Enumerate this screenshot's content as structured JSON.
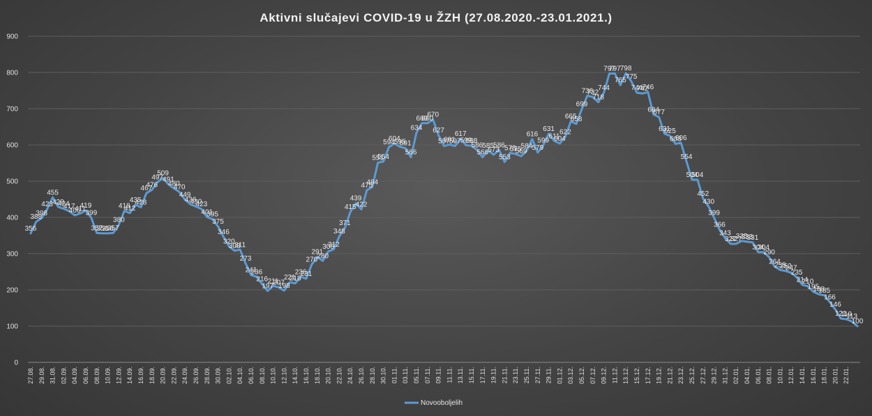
{
  "chart_data": {
    "type": "line",
    "title": "Aktivni  slučajevi  COVID-19  u  ŽZH  (27.08.2020.-23.01.2021.)",
    "xlabel": "",
    "ylabel": "",
    "ylim": [
      0,
      900
    ],
    "yticks": [
      0,
      100,
      200,
      300,
      400,
      500,
      600,
      700,
      800,
      900
    ],
    "grid": true,
    "legend_position": "bottom",
    "series_color": "#5b9bd5",
    "x_tick_labels": [
      "27.08.",
      "29.08.",
      "31.08.",
      "02.09.",
      "04.09.",
      "06.09.",
      "08.09.",
      "10.09.",
      "12.09.",
      "14.09.",
      "16.09.",
      "18.09.",
      "20.09.",
      "22.09.",
      "24.09.",
      "26.09.",
      "28.09.",
      "30.09.",
      "02.10.",
      "04.10.",
      "06.10.",
      "08.10.",
      "10.10.",
      "12.10.",
      "14.10.",
      "16.10.",
      "18.10.",
      "20.10.",
      "22.10.",
      "24.10.",
      "26.10.",
      "28.10.",
      "30.10.",
      "01.11.",
      "03.11.",
      "05.11.",
      "07.11.",
      "09.11.",
      "11.11.",
      "13.11.",
      "15.11.",
      "17.11.",
      "19.11.",
      "21.11.",
      "23.11.",
      "25.11.",
      "27.11.",
      "29.11.",
      "01.12.",
      "03.12.",
      "05.12.",
      "07.12.",
      "09.12.",
      "11.12.",
      "13.12.",
      "15.12.",
      "17.12.",
      "19.12.",
      "21.12.",
      "23.12.",
      "25.12.",
      "27.12.",
      "29.12.",
      "31.12.",
      "02.01.",
      "04.01.",
      "06.01.",
      "08.01.",
      "10.01.",
      "12.01.",
      "14.01.",
      "16.01.",
      "18.01.",
      "20.01.",
      "22.01."
    ],
    "series": [
      {
        "name": "Novooboljelih",
        "values": [
          356,
          388,
          398,
          423,
          455,
          429,
          424,
          417,
          406,
          411,
          419,
          399,
          357,
          356,
          356,
          357,
          380,
          418,
          412,
          435,
          428,
          467,
          476,
          497,
          509,
          491,
          480,
          470,
          449,
          436,
          430,
          423,
          401,
          395,
          375,
          346,
          320,
          308,
          311,
          273,
          241,
          236,
          216,
          197,
          211,
          207,
          198,
          221,
          218,
          236,
          231,
          270,
          291,
          280,
          306,
          312,
          348,
          371,
          415,
          439,
          422,
          475,
          484,
          551,
          554,
          594,
          604,
          595,
          591,
          566,
          634,
          660,
          660,
          670,
          627,
          597,
          601,
          597,
          617,
          599,
          598,
          586,
          566,
          585,
          573,
          586,
          553,
          578,
          575,
          569,
          584,
          616,
          579,
          599,
          631,
          611,
          604,
          622,
          665,
          658,
          699,
          736,
          732,
          718,
          744,
          797,
          797,
          765,
          798,
          775,
          744,
          742,
          746,
          684,
          677,
          631,
          625,
          603,
          606,
          554,
          504,
          504,
          452,
          430,
          399,
          366,
          343,
          327,
          327,
          335,
          333,
          331,
          304,
          304,
          290,
          264,
          255,
          252,
          247,
          235,
          214,
          210,
          195,
          188,
          185,
          166,
          146,
          121,
          119,
          113,
          100
        ]
      }
    ]
  }
}
